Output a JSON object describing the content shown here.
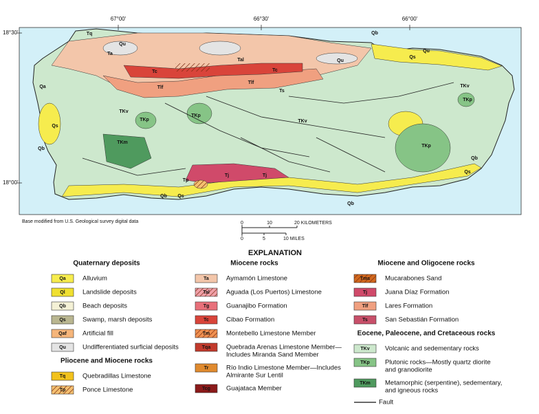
{
  "map": {
    "longitude_labels": [
      "67°00'",
      "66°30'",
      "66°00'"
    ],
    "latitude_labels": [
      "18°30'",
      "18°00'"
    ],
    "unit_labels": [
      "Tq",
      "Qu",
      "Ta",
      "Tal",
      "Tc",
      "Tlf",
      "Tlf",
      "Tc",
      "Qu",
      "Qb",
      "Qs",
      "Qu",
      "TKv",
      "TKp",
      "TKv",
      "TKp",
      "TKv",
      "TKp",
      "TKp",
      "Qs",
      "Qb",
      "TKm",
      "Ts",
      "Tp",
      "Tj",
      "Tj",
      "Qb",
      "Qs",
      "Qb",
      "Qs",
      "Qb",
      "Qa"
    ],
    "base_note": "Base modified from U.S. Geological survey digital data",
    "scale": {
      "kilometers": [
        "0",
        "10",
        "20 KILOMETERS"
      ],
      "miles": [
        "0",
        "5",
        "10 MILES"
      ]
    }
  },
  "explanation": {
    "title": "EXPLANATION",
    "columns": [
      [
        {
          "heading": "Quaternary deposits",
          "items": [
            {
              "code": "Qa",
              "label": [
                "Alluvium"
              ],
              "color": "#f6ec4e"
            },
            {
              "code": "Ql",
              "label": [
                "Landslide deposits"
              ],
              "color": "#f0e030"
            },
            {
              "code": "Qb",
              "label": [
                "Beach deposits"
              ],
              "color": "#f4f1d6"
            },
            {
              "code": "Qs",
              "label": [
                "Swamp, marsh deposits"
              ],
              "color": "#b9b690"
            },
            {
              "code": "Qaf",
              "label": [
                "Artificial fill"
              ],
              "color": "#f5b57a"
            },
            {
              "code": "Qu",
              "label": [
                "Undifferentiated surficial deposits"
              ],
              "color": "#e4e4e4"
            }
          ]
        },
        {
          "heading": "Pliocene and Miocene rocks",
          "items": [
            {
              "code": "Tq",
              "label": [
                "Quebradillas Limestone"
              ],
              "color": "#f2c21c"
            },
            {
              "code": "Tp",
              "label": [
                "Ponce Limestone"
              ],
              "color": "#f4c070",
              "hatched": true
            }
          ]
        }
      ],
      [
        {
          "heading": "Miocene rocks",
          "items": [
            {
              "code": "Ta",
              "label": [
                "Aymamón Limestone"
              ],
              "color": "#f3c6aa"
            },
            {
              "code": "Tal",
              "label": [
                "Aguada (Los Puertos) Limestone"
              ],
              "color": "#f0a0a8",
              "hatched": true
            },
            {
              "code": "Tg",
              "label": [
                "Guanajibo Formation"
              ],
              "color": "#e8707a"
            },
            {
              "code": "Tc",
              "label": [
                "Cibao Formation"
              ],
              "color": "#d9443a"
            },
            {
              "code": "Tm",
              "label": [
                "Montebello Limestone Member"
              ],
              "color": "#f09050",
              "hatched": true
            },
            {
              "code": "Tqa",
              "label": [
                "Quebrada Arenas Limestone Member—",
                "Includes Miranda Sand Member"
              ],
              "color": "#c23a2c"
            },
            {
              "code": "Tr",
              "label": [
                "Río Indio Limestone Member—Includes",
                "Almirante Sur Lentil"
              ],
              "color": "#e08a2e"
            },
            {
              "code": "Tcg",
              "label": [
                "Guajataca Member"
              ],
              "color": "#8b1a1a"
            }
          ]
        }
      ],
      [
        {
          "heading": "Miocene and Oligocene rocks",
          "items": [
            {
              "code": "Tms",
              "label": [
                "Mucarabones Sand"
              ],
              "color": "#d2691e",
              "hatched": true
            },
            {
              "code": "Tj",
              "label": [
                "Juana Díaz Formation"
              ],
              "color": "#d04a6a"
            },
            {
              "code": "Tlf",
              "label": [
                "Lares Formation"
              ],
              "color": "#f0a080"
            },
            {
              "code": "Ts",
              "label": [
                "San Sebastián Formation"
              ],
              "color": "#c8506a"
            }
          ]
        },
        {
          "heading": "Eocene, Paleocene, and Cretaceous rocks",
          "items": [
            {
              "code": "TKv",
              "label": [
                "Volcanic and sedementary rocks"
              ],
              "color": "#cde8cd"
            },
            {
              "code": "TKp",
              "label": [
                "Plutonic rocks—Mostly quartz diorite",
                "and  granodiorite"
              ],
              "color": "#86c486"
            },
            {
              "code": "TKm",
              "label": [
                "Metamorphic (serpentine), sedementary,",
                "and igneous rocks"
              ],
              "color": "#4f9a5e"
            }
          ]
        }
      ]
    ],
    "fault": "Fault"
  }
}
